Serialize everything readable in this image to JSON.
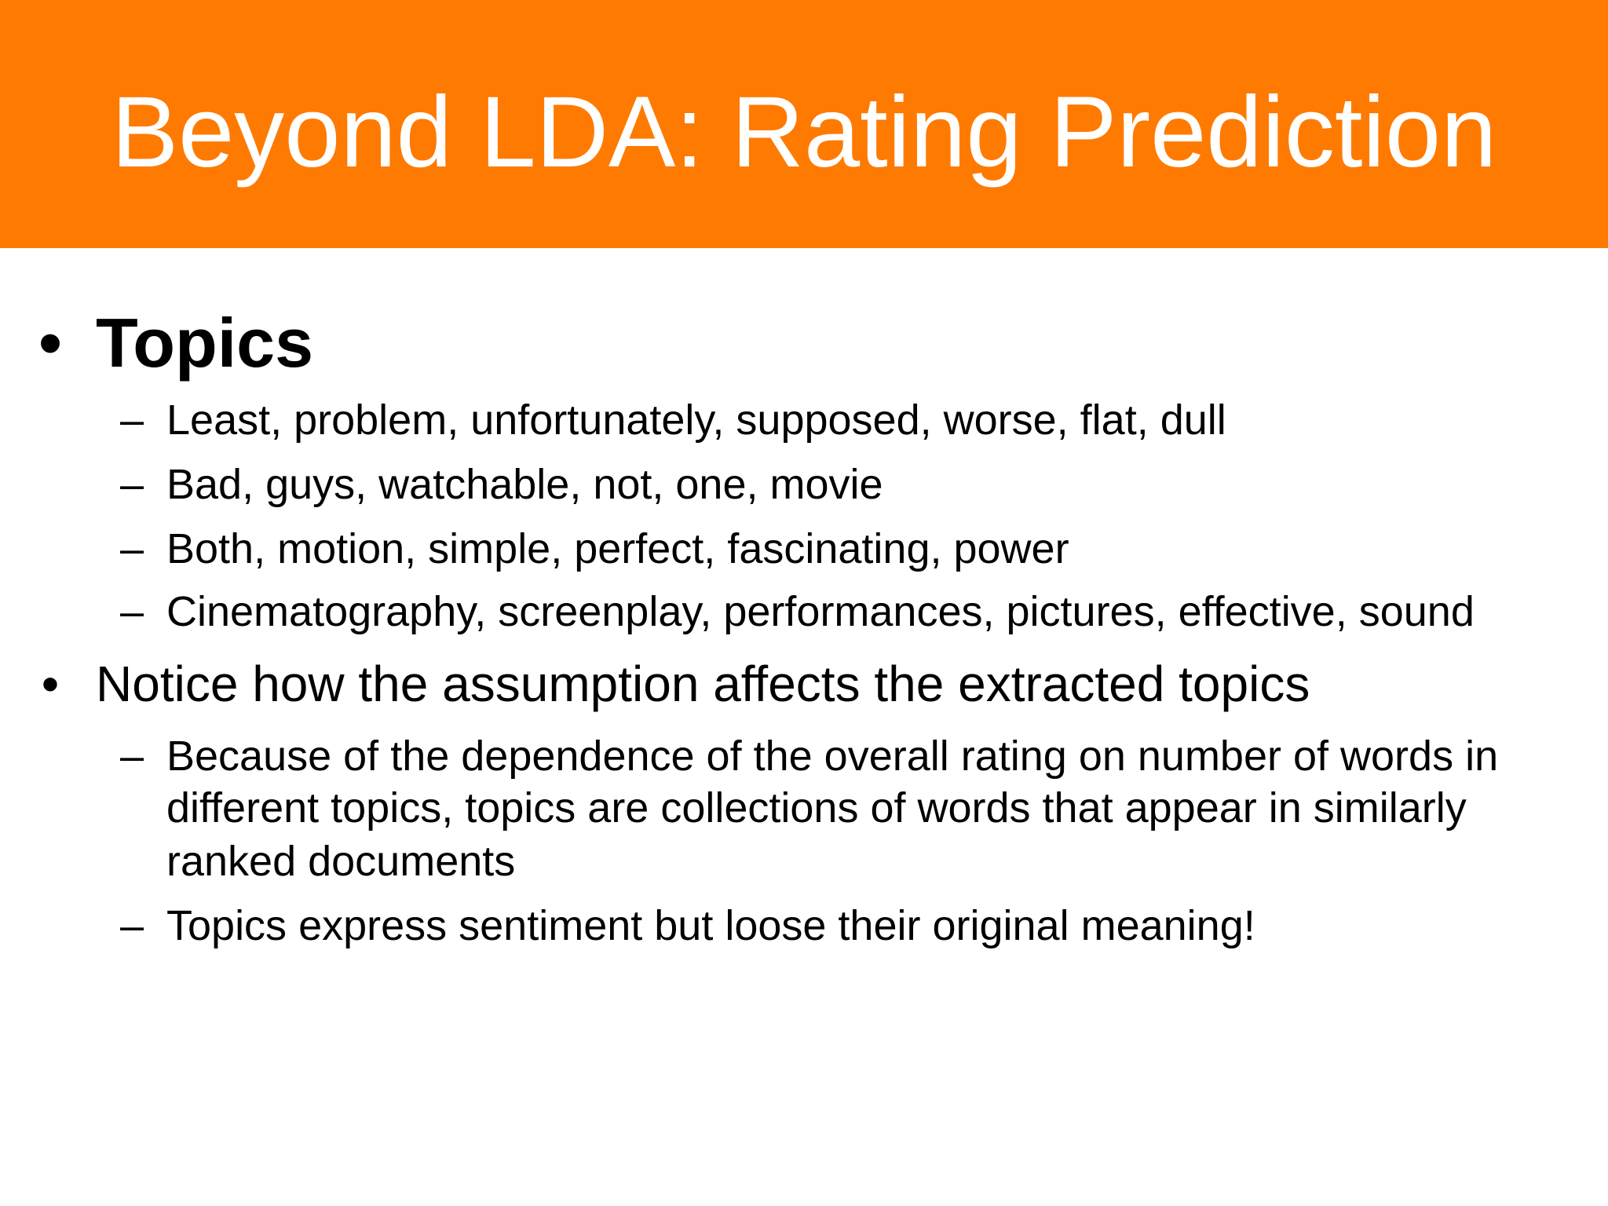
{
  "slide": {
    "title": "Beyond LDA: Rating Prediction",
    "accent_color": "#ff7a00",
    "bullets": [
      {
        "marker": "•",
        "text": "Topics",
        "subitems": [
          {
            "marker": "–",
            "text": "Least, problem, unfortunately, supposed, worse, flat, dull"
          },
          {
            "marker": "–",
            "text": "Bad, guys, watchable, not, one, movie"
          },
          {
            "marker": "–",
            "text": "Both, motion, simple, perfect, fascinating, power"
          },
          {
            "marker": "–",
            "text": "Cinematography, screenplay, performances, pictures, effective, sound"
          }
        ]
      },
      {
        "marker": "•",
        "text": "Notice how the assumption affects the extracted topics",
        "subitems": [
          {
            "marker": "–",
            "lines": [
              "Because of the dependence of the overall rating on number of words in",
              "different topics, topics are collections of words that appear in similarly",
              "ranked documents"
            ]
          },
          {
            "marker": "–",
            "text": "Topics express sentiment but loose their original meaning!"
          }
        ]
      }
    ]
  }
}
